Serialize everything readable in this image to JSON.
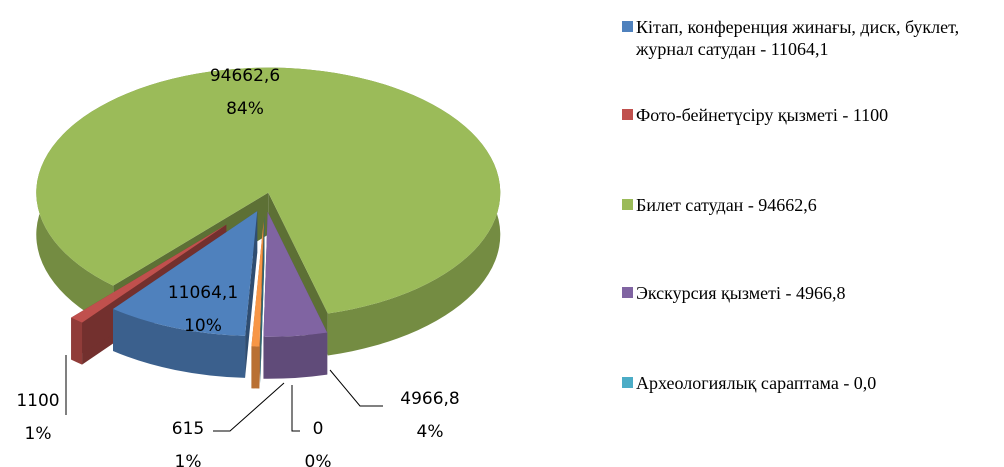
{
  "chart_data": {
    "type": "pie3d",
    "categories": [
      "Кітап, конференция жинағы, диск, буклет, журнал сатудан - 11064,1",
      "Фото-бейнетүсіру қызметі - 1100",
      "Билет сатудан - 94662,6",
      "Экскурсия қызметі - 4966,8",
      "Археологиялық сараптама - 0,0",
      null
    ],
    "values": [
      11064.1,
      1100,
      94662.6,
      4966.8,
      0,
      615
    ],
    "value_labels": [
      "11064,1",
      "1100",
      "94662,6",
      "4966,8",
      "0",
      "615"
    ],
    "percent_labels": [
      "10%",
      "1%",
      "84%",
      "4%",
      "0%",
      "1%"
    ],
    "colors": [
      "#4f81bd",
      "#c0504d",
      "#9bbb59",
      "#8064a2",
      "#4bacc6",
      "#f79646"
    ],
    "legend": "right"
  }
}
